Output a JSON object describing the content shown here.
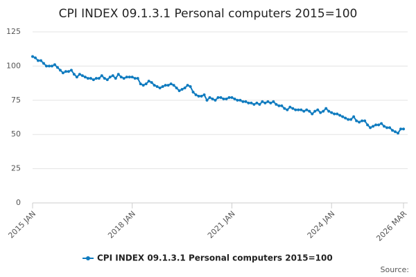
{
  "chart_data": {
    "type": "line",
    "title": "CPI INDEX 09.1.3.1 Personal computers 2015=100",
    "source": "Source:",
    "categories": [
      "2015 JAN",
      null,
      null,
      null,
      null,
      null,
      null,
      null,
      null,
      null,
      null,
      null,
      null,
      null,
      null,
      null,
      null,
      null,
      null,
      null,
      null,
      null,
      null,
      null,
      null,
      null,
      null,
      null,
      null,
      null,
      null,
      null,
      null,
      null,
      null,
      null,
      "2018 JAN",
      null,
      null,
      null,
      null,
      null,
      null,
      null,
      null,
      null,
      null,
      null,
      null,
      null,
      null,
      null,
      null,
      null,
      null,
      null,
      null,
      null,
      null,
      null,
      null,
      null,
      null,
      null,
      null,
      null,
      null,
      null,
      null,
      null,
      null,
      null,
      "2021 JAN",
      null,
      null,
      null,
      null,
      null,
      null,
      null,
      null,
      null,
      null,
      null,
      null,
      null,
      null,
      null,
      null,
      null,
      null,
      null,
      null,
      null,
      null,
      null,
      null,
      null,
      null,
      null,
      null,
      null,
      null,
      null,
      null,
      null,
      null,
      null,
      "2024 JAN",
      null,
      null,
      null,
      null,
      null,
      null,
      null,
      null,
      null,
      null,
      null,
      null,
      null,
      null,
      null,
      null,
      null,
      null,
      null,
      null,
      null,
      null,
      null,
      null,
      null,
      "2026 MAR"
    ],
    "series": [
      {
        "name": "CPI INDEX 09.1.3.1 Personal computers 2015=100",
        "color": "#0f7bbf",
        "values": [
          107,
          106,
          104,
          104,
          102,
          100,
          100,
          100,
          101,
          99,
          97,
          95,
          96,
          96,
          97,
          94,
          92,
          94,
          93,
          92,
          91,
          91,
          90,
          91,
          91,
          93,
          91,
          90,
          92,
          93,
          91,
          94,
          92,
          91,
          92,
          92,
          92,
          91,
          91,
          87,
          86,
          87,
          89,
          88,
          86,
          85,
          84,
          85,
          86,
          86,
          87,
          86,
          84,
          82,
          83,
          84,
          86,
          85,
          81,
          79,
          78,
          78,
          79,
          75,
          77,
          76,
          75,
          77,
          77,
          76,
          76,
          77,
          77,
          76,
          75,
          75,
          74,
          74,
          73,
          73,
          72,
          73,
          72,
          74,
          73,
          74,
          73,
          74,
          72,
          71,
          71,
          69,
          68,
          70,
          69,
          68,
          68,
          68,
          67,
          68,
          67,
          65,
          67,
          68,
          66,
          67,
          69,
          67,
          66,
          65,
          65,
          64,
          63,
          62,
          61,
          61,
          63,
          60,
          59,
          60,
          60,
          57,
          55,
          56,
          57,
          57,
          58,
          56,
          55,
          55,
          53,
          52,
          51,
          54,
          54
        ]
      }
    ],
    "ylim": [
      0,
      125
    ],
    "yticks": [
      0,
      25,
      50,
      75,
      100,
      125
    ],
    "grid": true
  }
}
